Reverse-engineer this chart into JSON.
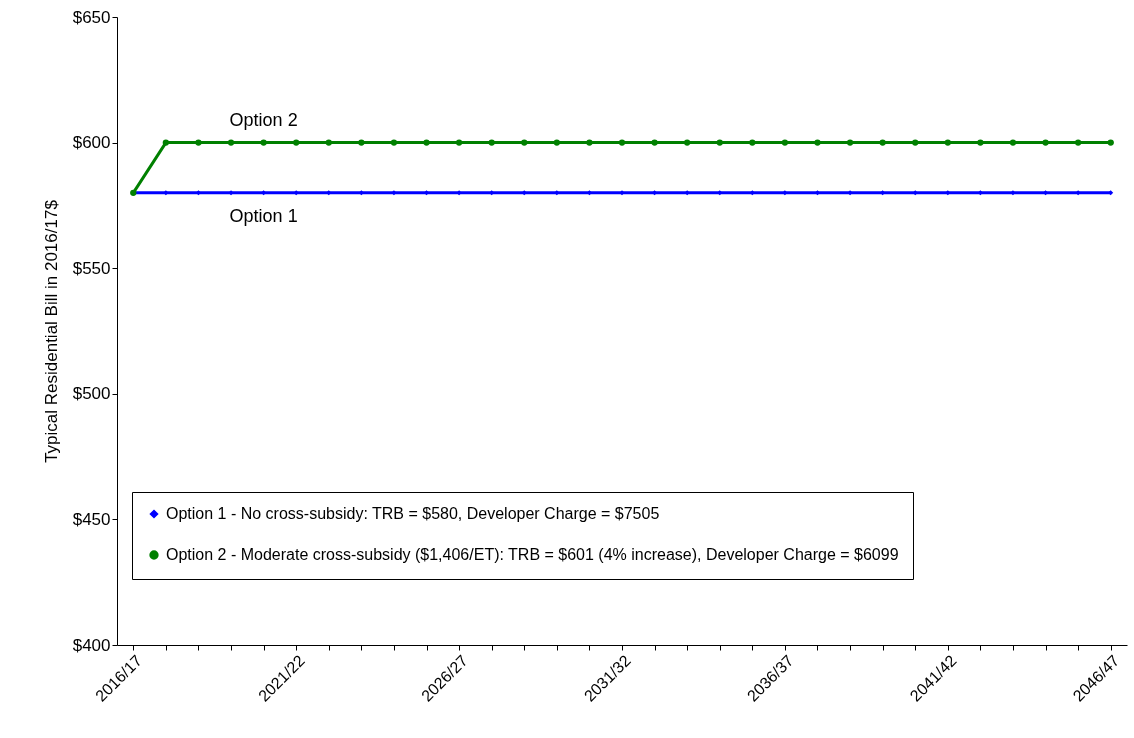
{
  "chart_data": {
    "type": "line",
    "ylabel": "Typical Residential Bill in 2016/17$",
    "categories": [
      "2016/17",
      null,
      null,
      null,
      null,
      "2021/22",
      null,
      null,
      null,
      null,
      "2026/27",
      null,
      null,
      null,
      null,
      "2031/32",
      null,
      null,
      null,
      null,
      "2036/37",
      null,
      null,
      null,
      null,
      "2041/42",
      null,
      null,
      null,
      null,
      "2046/47"
    ],
    "series": [
      {
        "name": "Option 1 - No cross-subsidy: TRB = $580, Developer Charge = $7505",
        "color": "#0000ff",
        "marker": "diamond",
        "values": [
          580,
          580,
          580,
          580,
          580,
          580,
          580,
          580,
          580,
          580,
          580,
          580,
          580,
          580,
          580,
          580,
          580,
          580,
          580,
          580,
          580,
          580,
          580,
          580,
          580,
          580,
          580,
          580,
          580,
          580,
          580
        ]
      },
      {
        "name": "Option 2 - Moderate cross-subsidy ($1,406/ET): TRB = $601 (4% increase), Developer Charge = $6099",
        "color": "#008000",
        "marker": "circle",
        "values": [
          580,
          600,
          600,
          600,
          600,
          600,
          600,
          600,
          600,
          600,
          600,
          600,
          600,
          600,
          600,
          600,
          600,
          600,
          600,
          600,
          600,
          600,
          600,
          600,
          600,
          600,
          600,
          600,
          600,
          600,
          600
        ]
      }
    ],
    "ylim": [
      400,
      650
    ],
    "yticks": [
      {
        "value": 400,
        "label": "$400"
      },
      {
        "value": 450,
        "label": "$450"
      },
      {
        "value": 500,
        "label": "$500"
      },
      {
        "value": 550,
        "label": "$550"
      },
      {
        "value": 600,
        "label": "$600"
      },
      {
        "value": 650,
        "label": "$650"
      }
    ],
    "annotations": [
      {
        "text": "Option 2",
        "y": 600
      },
      {
        "text": "Option 1",
        "y": 580
      }
    ],
    "legend": "bottom",
    "grid": false
  }
}
